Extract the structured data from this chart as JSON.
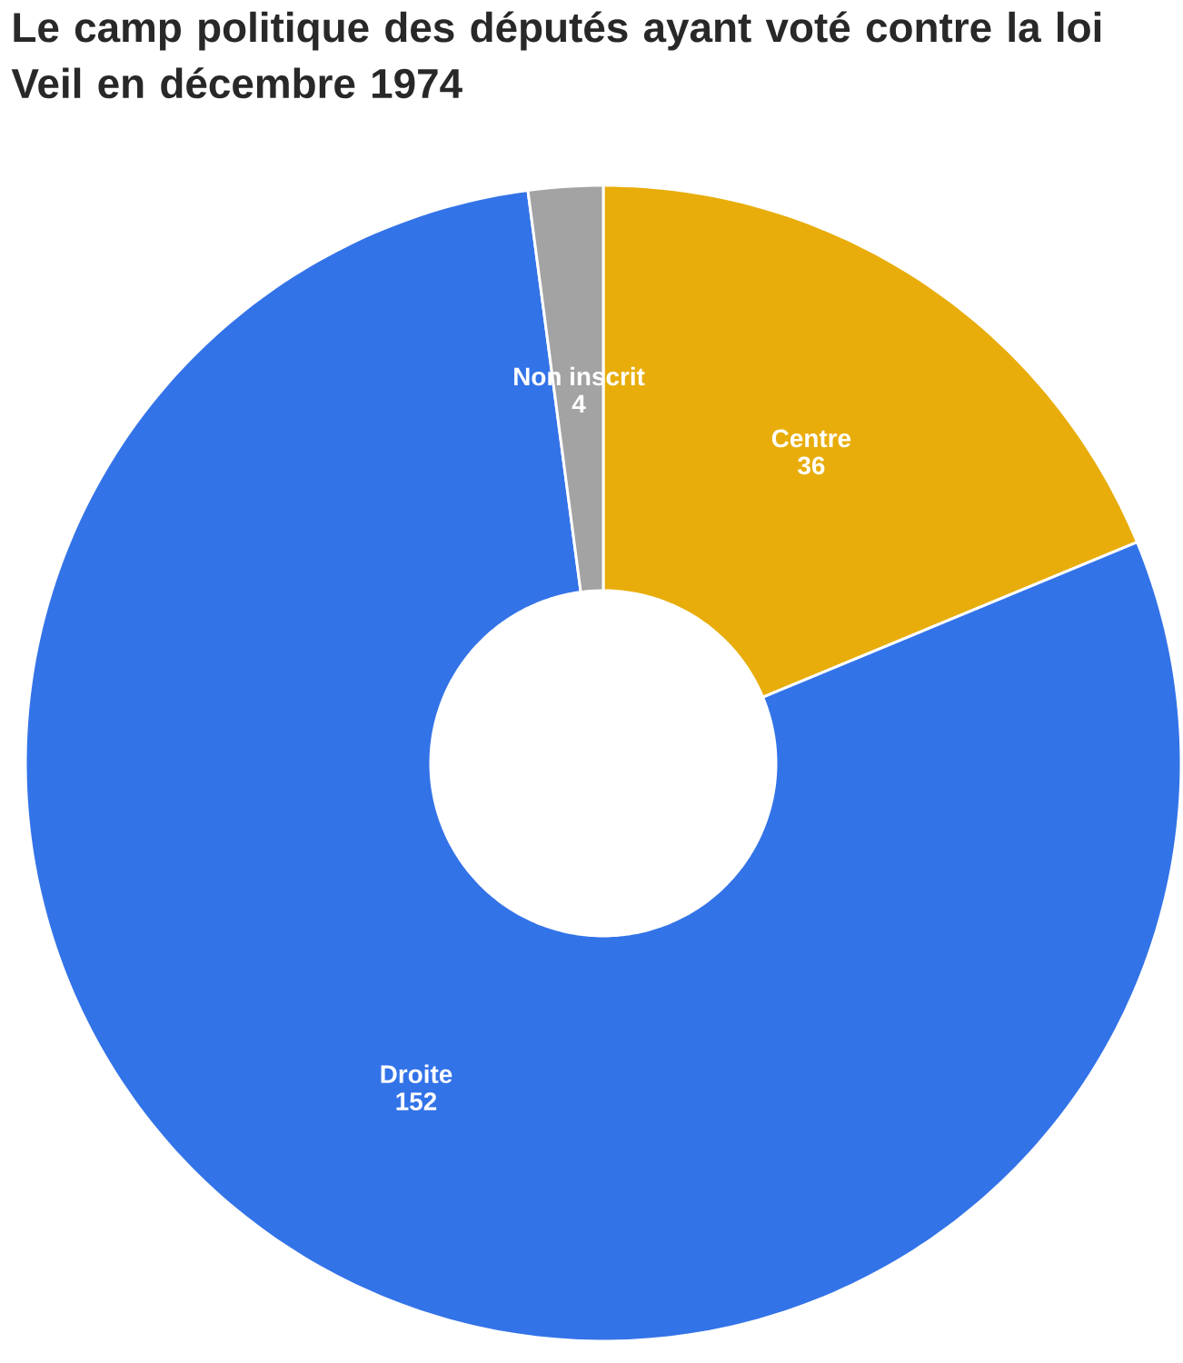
{
  "chart_data": {
    "type": "donut",
    "title": "Le camp politique des députés ayant voté contre la loi Veil en décembre 1974",
    "categories": [
      "Centre",
      "Droite",
      "Non inscrit"
    ],
    "values": [
      36,
      152,
      4
    ],
    "colors": [
      "#e8ad0b",
      "#3373e8",
      "#a3a3a3"
    ],
    "data_labels": true
  }
}
